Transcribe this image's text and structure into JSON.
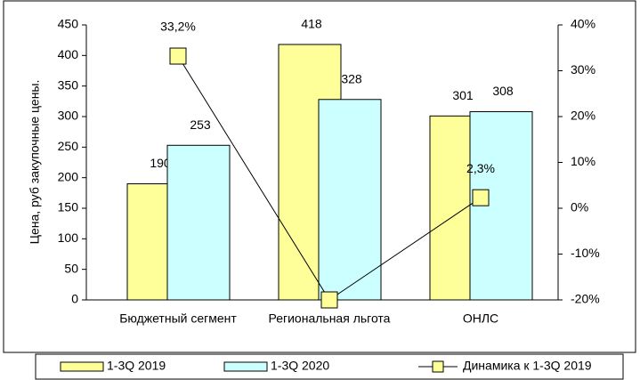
{
  "chart_data": {
    "type": "bar",
    "y_label": "Цена, руб закупочные цены.",
    "categories": [
      "Бюджетный сегмент",
      "Региональная льгота",
      "ОНЛС"
    ],
    "series": [
      {
        "name": "1-3Q 2019",
        "color": "#ffff99",
        "values": [
          190,
          418,
          301
        ]
      },
      {
        "name": "1-3Q 2020",
        "color": "#ccffff",
        "values": [
          253,
          328,
          308
        ]
      },
      {
        "name": "Динамика к 1-3Q 2019",
        "type": "line",
        "axis": "y2",
        "color": "#ffff99",
        "values": [
          33.2,
          -20,
          2.3
        ],
        "value_labels": [
          "33,2%",
          null,
          "2,3%"
        ]
      }
    ],
    "ylim": [
      0,
      450
    ],
    "yticks": [
      0,
      50,
      100,
      150,
      200,
      250,
      300,
      350,
      400,
      450
    ],
    "y2lim": [
      -20,
      40
    ],
    "y2ticks": [
      {
        "value": -20,
        "label": "-20%"
      },
      {
        "value": -10,
        "label": "-10%"
      },
      {
        "value": 0,
        "label": "0%"
      },
      {
        "value": 10,
        "label": "10%"
      },
      {
        "value": 20,
        "label": "20%"
      },
      {
        "value": 30,
        "label": "30%"
      },
      {
        "value": 40,
        "label": "40%"
      }
    ]
  }
}
